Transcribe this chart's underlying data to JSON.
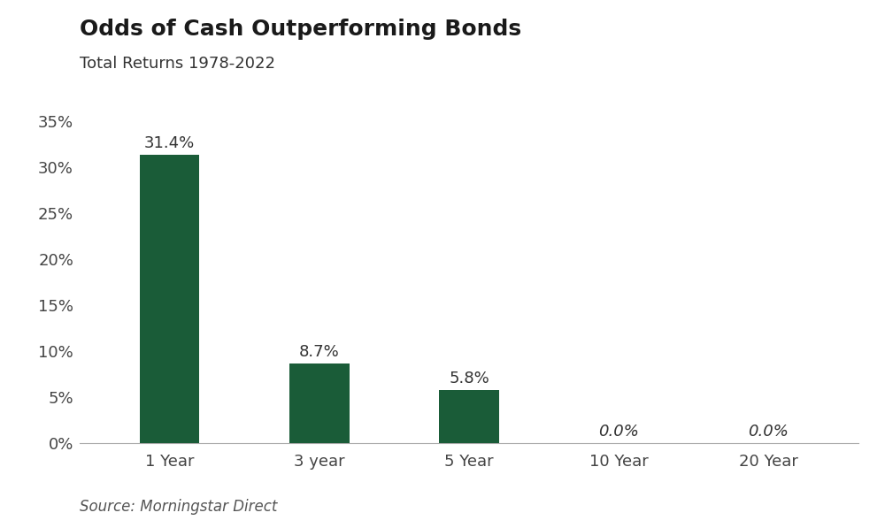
{
  "title": "Odds of Cash Outperforming Bonds",
  "subtitle": "Total Returns 1978-2022",
  "source": "Source: Morningstar Direct",
  "categories": [
    "1 Year",
    "3 year",
    "5 Year",
    "10 Year",
    "20 Year"
  ],
  "values": [
    31.4,
    8.7,
    5.8,
    0.0,
    0.0
  ],
  "bar_color": "#1a5c38",
  "bar_labels": [
    "31.4%",
    "8.7%",
    "5.8%",
    "0.0%",
    "0.0%"
  ],
  "ylim": [
    0,
    35
  ],
  "yticks": [
    0,
    5,
    10,
    15,
    20,
    25,
    30,
    35
  ],
  "ytick_labels": [
    "0%",
    "5%",
    "10%",
    "15%",
    "20%",
    "25%",
    "30%",
    "35%"
  ],
  "title_fontsize": 18,
  "subtitle_fontsize": 13,
  "tick_fontsize": 13,
  "label_fontsize": 13,
  "source_fontsize": 12,
  "background_color": "#ffffff",
  "bar_width": 0.4
}
